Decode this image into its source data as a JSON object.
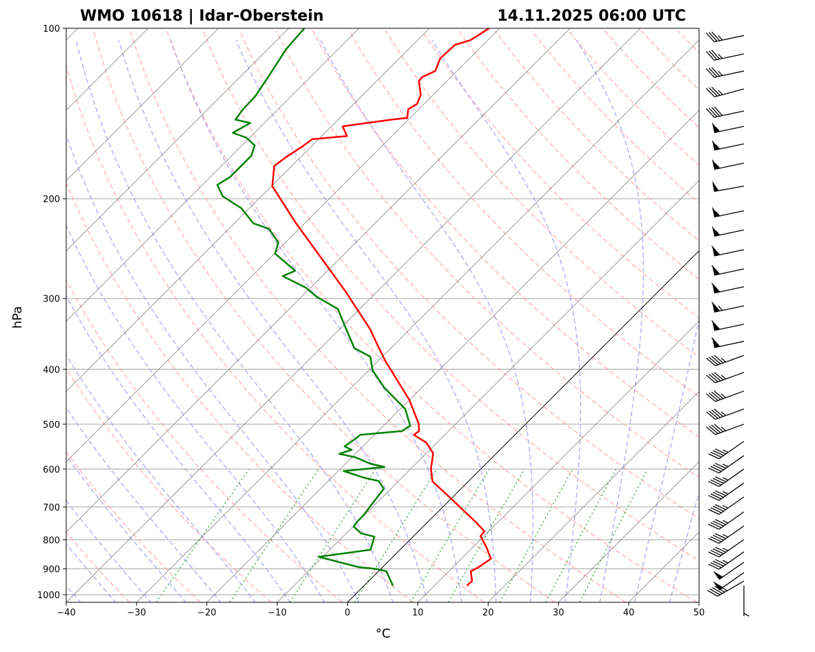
{
  "chart_data": {
    "type": "line",
    "subtype": "skew-t log-p",
    "title_left": "WMO 10618 | Idar-Oberstein",
    "title_right": "14.11.2025 06:00 UTC",
    "xlabel": "°C",
    "ylabel": "hPa",
    "xlim": [
      -40,
      50
    ],
    "ylim": [
      1031,
      100
    ],
    "xticks": [
      "−40",
      "−30",
      "−20",
      "−10",
      "0",
      "10",
      "20",
      "30",
      "40",
      "50"
    ],
    "xtick_values": [
      -40,
      -30,
      -20,
      -10,
      0,
      10,
      20,
      30,
      40,
      50
    ],
    "yticks": [
      "100",
      "200",
      "300",
      "400",
      "500",
      "600",
      "700",
      "800",
      "900",
      "1000"
    ],
    "ytick_values": [
      100,
      200,
      300,
      400,
      500,
      600,
      700,
      800,
      900,
      1000
    ],
    "grid": true,
    "colors": {
      "temperature": "#ff0000",
      "dewpoint": "#008000",
      "isotherm": "#808080",
      "zero_isotherm": "#000000",
      "dry_adiabat": "#ff9999",
      "moist_adiabat": "#9999ee",
      "mixing_ratio": "#44aa44"
    },
    "series": [
      {
        "name": "Temperature",
        "p": [
          964,
          946,
          909,
          896,
          864,
          824,
          788,
          773,
          745,
          675,
          631,
          600,
          563,
          539,
          522,
          514,
          500,
          453,
          387,
          362,
          340,
          291,
          220,
          190,
          175,
          168,
          162,
          157,
          155,
          149,
          145,
          144,
          139,
          136,
          131,
          124,
          122,
          119,
          113,
          107,
          105,
          100
        ],
        "T": [
          14.6,
          14.7,
          13.1,
          13.6,
          14.2,
          11.9,
          9.5,
          9.4,
          6.9,
          -0.2,
          -5.1,
          -7.1,
          -9.0,
          -11.5,
          -14.4,
          -14.2,
          -15.2,
          -20.0,
          -28.9,
          -32.4,
          -35.6,
          -44.6,
          -61.5,
          -69.9,
          -72.5,
          -72.0,
          -71.3,
          -70.9,
          -66.4,
          -68.4,
          -62.4,
          -60.4,
          -61.5,
          -61.0,
          -61.8,
          -64.0,
          -64.1,
          -63.1,
          -64.2,
          -64.0,
          -62.5,
          -61.5
        ]
      },
      {
        "name": "Dewpoint",
        "p": [
          964,
          909,
          901,
          894,
          857,
          833,
          790,
          779,
          758,
          745,
          725,
          650,
          630,
          621,
          605,
          595,
          587,
          572,
          564,
          555,
          547,
          529,
          522,
          514,
          503,
          470,
          431,
          402,
          380,
          367,
          336,
          313,
          298,
          287,
          274,
          268,
          250,
          239,
          226,
          221,
          208,
          198,
          189,
          183,
          168,
          161,
          156,
          153,
          147,
          145,
          139,
          132,
          121,
          109,
          100
        ],
        "T": [
          4.1,
          1.1,
          -0.5,
          -3.4,
          -10.6,
          -4.2,
          -5.5,
          -7.9,
          -9.9,
          -10.1,
          -10.1,
          -11.0,
          -12.8,
          -15.5,
          -19.2,
          -14.0,
          -16.5,
          -19.5,
          -22.3,
          -21.1,
          -22.6,
          -22.1,
          -22.0,
          -16.6,
          -16.2,
          -19.3,
          -25.3,
          -29.4,
          -31.7,
          -35.2,
          -39.6,
          -43.1,
          -47.8,
          -50.7,
          -55.6,
          -54.6,
          -59.9,
          -61.0,
          -64.3,
          -67.3,
          -71.1,
          -75.5,
          -77.9,
          -77.2,
          -77.2,
          -78.2,
          -80.5,
          -83.1,
          -82.0,
          -84.6,
          -85.0,
          -85.1,
          -86.1,
          -87.4,
          -87.8
        ]
      }
    ],
    "wind_barbs": {
      "units": "kt",
      "p": [
        103,
        111,
        119,
        128,
        140,
        149,
        160,
        173,
        190,
        210,
        227,
        246,
        266,
        286,
        309,
        333,
        357,
        378,
        405,
        437,
        470,
        500,
        536,
        568,
        600,
        635,
        672,
        714,
        756,
        799,
        840,
        876,
        914,
        946,
        964
      ],
      "speed": [
        35,
        35,
        35,
        35,
        40,
        55,
        55,
        55,
        50,
        55,
        55,
        60,
        60,
        60,
        65,
        60,
        60,
        45,
        45,
        45,
        45,
        45,
        45,
        45,
        45,
        45,
        45,
        45,
        45,
        45,
        45,
        50,
        50,
        45,
        5
      ],
      "direction": [
        258,
        258,
        258,
        255,
        258,
        258,
        258,
        258,
        260,
        258,
        258,
        258,
        258,
        258,
        258,
        258,
        258,
        250,
        250,
        250,
        250,
        250,
        235,
        235,
        235,
        235,
        235,
        235,
        235,
        235,
        235,
        235,
        235,
        240,
        180
      ]
    }
  }
}
